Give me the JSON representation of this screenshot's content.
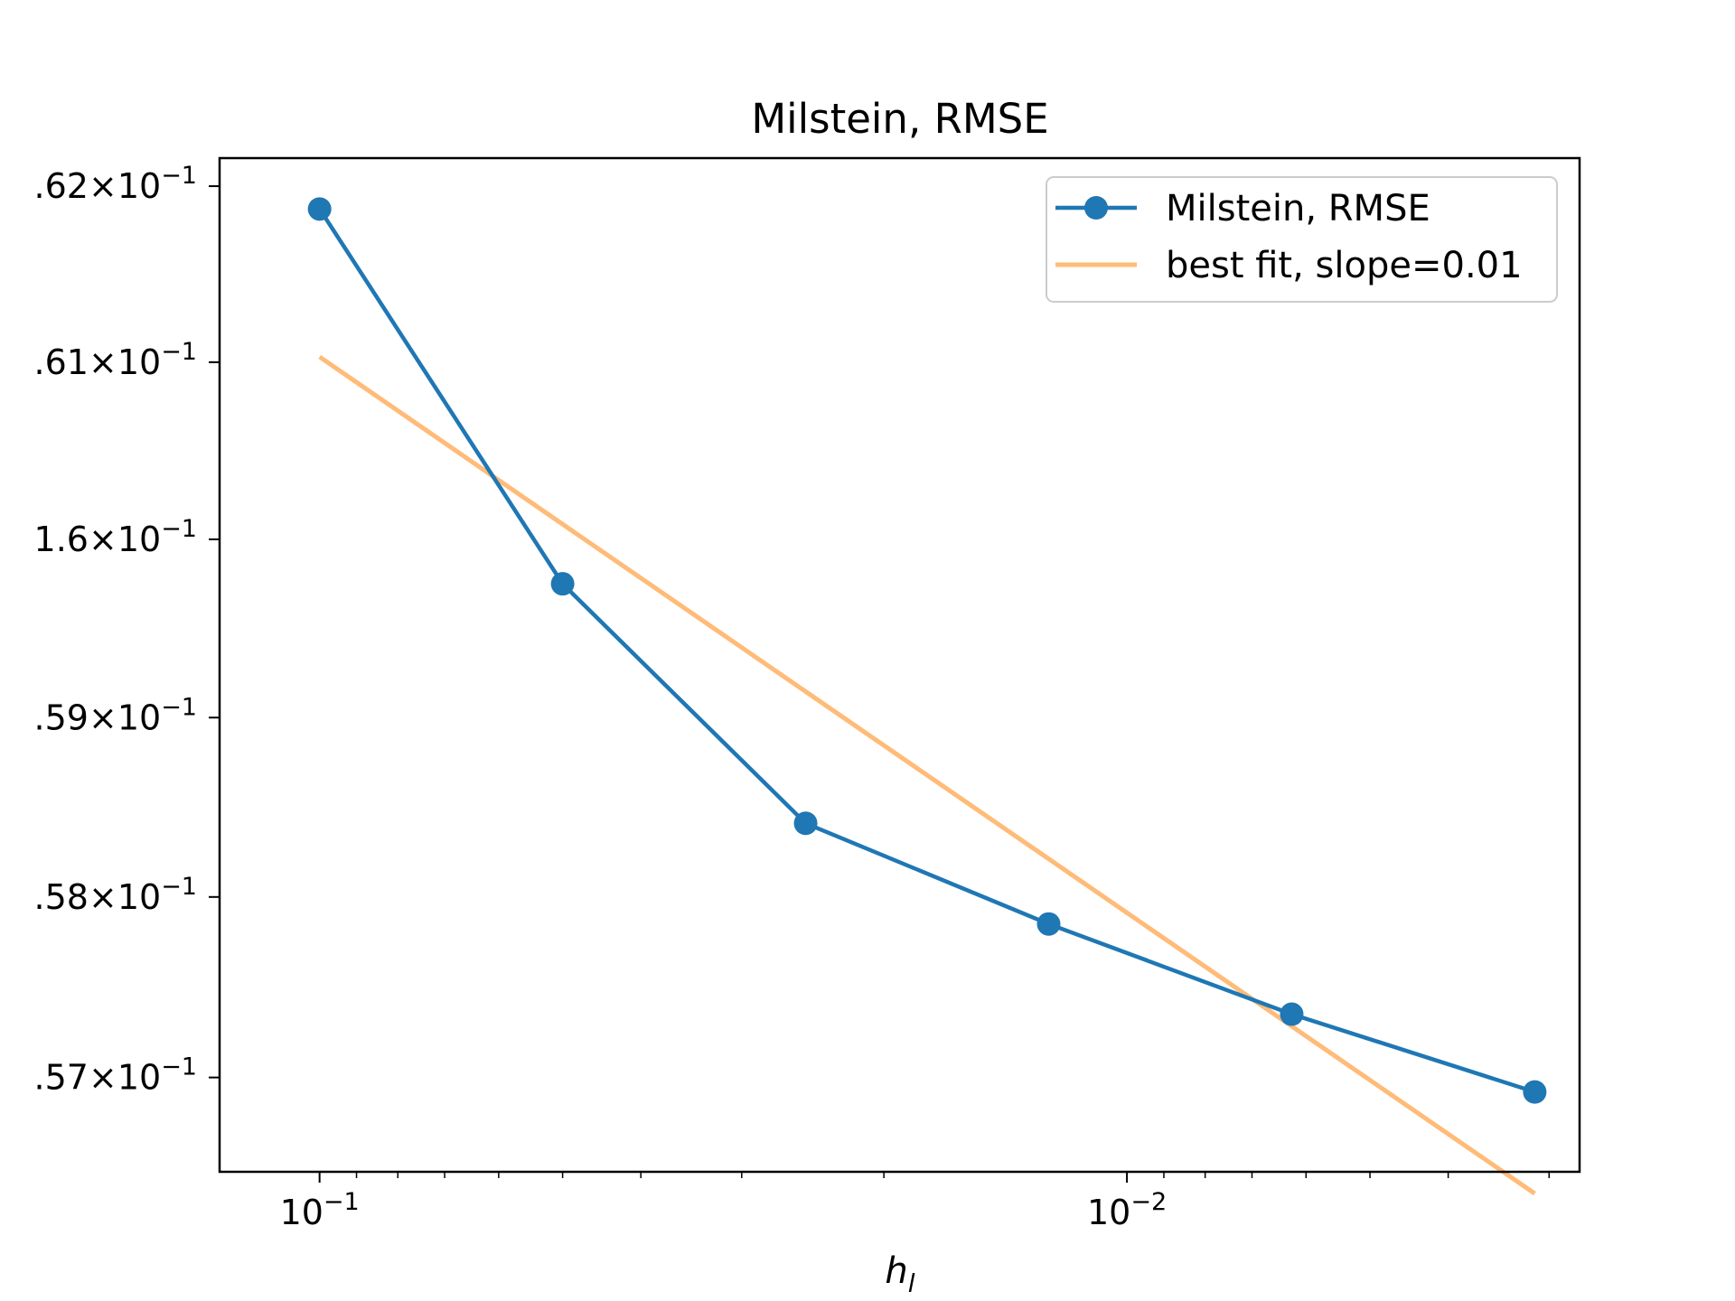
{
  "chart_data": {
    "type": "line",
    "title": "Milstein, RMSE",
    "xlabel": "h",
    "xlabel_subscript": "l",
    "ylabel": "",
    "x_scale": "log",
    "y_scale": "log",
    "x_inverted": true,
    "xlim": [
      0.133,
      0.00275
    ],
    "ylim": [
      0.15648,
      0.16216
    ],
    "grid": false,
    "legend_position": "top-right",
    "x_ticks": [
      {
        "value": 0.1,
        "base": "10",
        "exp": "−1"
      },
      {
        "value": 0.01,
        "base": "10",
        "exp": "−2"
      }
    ],
    "y_ticks": [
      {
        "value": 0.162,
        "mantissa": ".62",
        "exp": "−1"
      },
      {
        "value": 0.161,
        "mantissa": ".61",
        "exp": "−1"
      },
      {
        "value": 0.16,
        "mantissa": "1.6",
        "exp": "−1"
      },
      {
        "value": 0.159,
        "mantissa": ".59",
        "exp": "−1"
      },
      {
        "value": 0.158,
        "mantissa": ".58",
        "exp": "−1"
      },
      {
        "value": 0.157,
        "mantissa": ".57",
        "exp": "−1"
      }
    ],
    "series": [
      {
        "name": "Milstein, RMSE",
        "color": "#1f77b4",
        "marker": "circle",
        "x": [
          0.1,
          0.05,
          0.025,
          0.0125,
          0.00625,
          0.003125
        ],
        "y": [
          0.16187,
          0.15975,
          0.15841,
          0.15785,
          0.15735,
          0.15692
        ]
      },
      {
        "name": "best fit, slope=0.01",
        "color": "#ffbb78",
        "marker": "none",
        "x": [
          0.1,
          0.003125
        ],
        "y": [
          0.16103,
          0.15636
        ]
      }
    ]
  }
}
